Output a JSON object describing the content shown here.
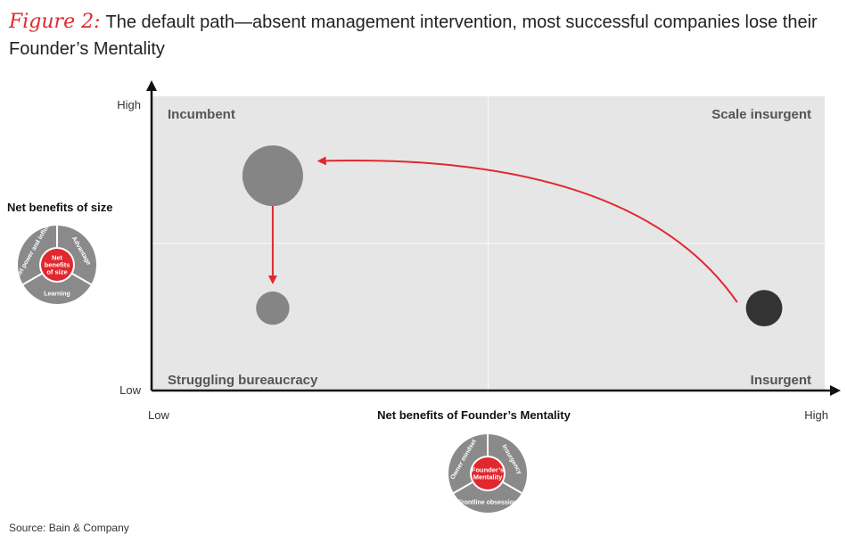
{
  "figure": {
    "label": "Figure 2:",
    "title": "The default path—absent management intervention, most successful companies lose their Founder’s Mentality"
  },
  "source": "Source: Bain & Company",
  "chart_data": {
    "type": "scatter",
    "xlabel": "Net benefits of Founder’s Mentality",
    "ylabel": "Net benefits of size",
    "x_ticks": [
      "Low",
      "High"
    ],
    "y_ticks": [
      "High",
      "Low"
    ],
    "xlim": [
      0,
      1
    ],
    "ylim": [
      0,
      1
    ],
    "grid": true,
    "quadrants": {
      "top_left": "Incumbent",
      "top_right": "Scale insurgent",
      "bottom_left": "Struggling bureaucracy",
      "bottom_right": "Insurgent"
    },
    "points": [
      {
        "x": 0.91,
        "y": 0.28,
        "r": 0.6,
        "color": "#333333"
      },
      {
        "x": 0.18,
        "y": 0.73,
        "r": 1.0,
        "color": "#858585"
      },
      {
        "x": 0.18,
        "y": 0.28,
        "r": 0.55,
        "color": "#858585"
      }
    ],
    "arrows": [
      {
        "from": [
          0.87,
          0.3
        ],
        "to": [
          0.25,
          0.78
        ],
        "style": "curve",
        "color": "#e0282e"
      },
      {
        "from": [
          0.18,
          0.65
        ],
        "to": [
          0.18,
          0.37
        ],
        "style": "straight",
        "color": "#e0282e"
      }
    ],
    "wheels": [
      {
        "center": [
          "Net",
          "benefits",
          "of size"
        ],
        "segments": [
          "Market power and influence",
          "Advantage",
          "Learning"
        ]
      },
      {
        "center": [
          "Founder’s",
          "Mentality"
        ],
        "segments": [
          "Owner mindset",
          "Insurgency",
          "Frontline obsession"
        ]
      }
    ]
  }
}
